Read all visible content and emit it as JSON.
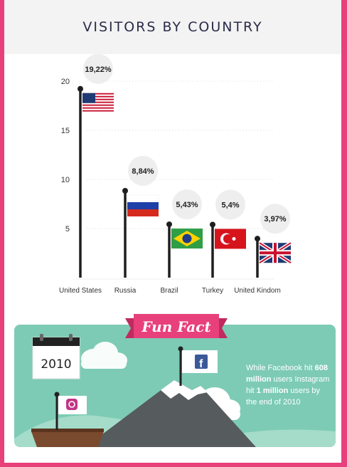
{
  "header": {
    "title": "VISITORS BY COUNTRY"
  },
  "chart_data": {
    "type": "bar",
    "categories": [
      "United States",
      "Russia",
      "Brazil",
      "Turkey",
      "United Kindom"
    ],
    "values": [
      19.22,
      8.84,
      5.43,
      5.4,
      3.97
    ],
    "data_labels": [
      "19,22%",
      "8,84%",
      "5,43%",
      "5,4%",
      "3,97%"
    ],
    "yticks": [
      "5",
      "10",
      "15",
      "20"
    ],
    "ylim": [
      0,
      20
    ],
    "grid": true
  },
  "fun_fact": {
    "badge": "Fun Fact",
    "year": "2010",
    "text_1": "While Facebook hit ",
    "bold_1": "608 million",
    "text_2": " users Instagram hit ",
    "bold_2": "1 million",
    "text_3": " users by the end of 2010",
    "flag_fb_icon": "facebook-icon",
    "flag_ig_icon": "instagram-icon"
  },
  "colors": {
    "border": "#e8407a",
    "teal": "#7dcbb5",
    "title": "#2b2b4a"
  }
}
